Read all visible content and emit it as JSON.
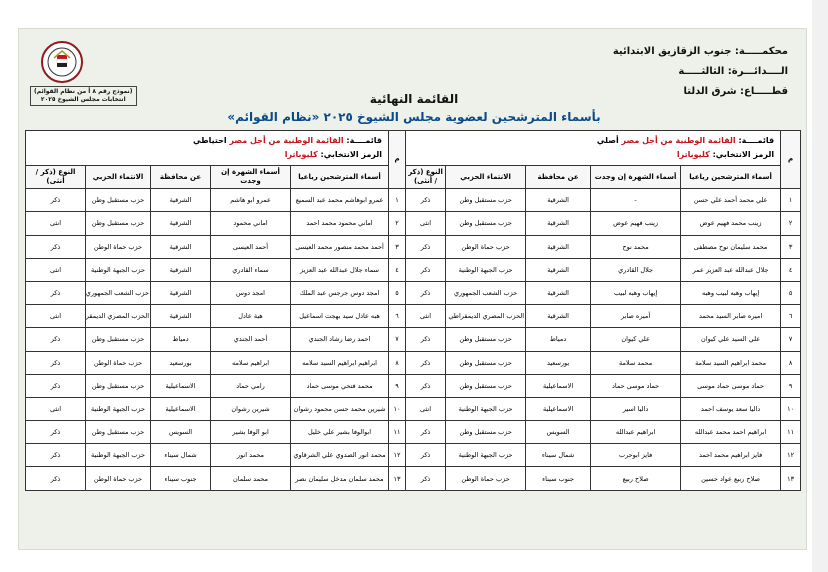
{
  "header": {
    "court": "محكمـــــة: جنوب الزقازيق الابتدائية",
    "circuit": "الــــدائـــرة: الثالثـــــة",
    "sector": "قطـــــاع: شرق الدلتا",
    "title": "القائمة النهائية",
    "subtitle": "بأسماء المترشحين لعضوية مجلس الشيوخ ٢٠٢٥ «نظام القوائم»",
    "form_note": [
      "(نموذج رقم ٨ أ من نظام القوائم)",
      "انتخابات مجلس الشيوخ ٢٠٢٥"
    ]
  },
  "tables": [
    {
      "list_label": "قائمــــة:",
      "list_name": "القائمة الوطنية من أجل مصر",
      "list_type": "أصلي",
      "symbol_label": "الرمز الانتخابي:",
      "symbol": "كليوباترا",
      "columns": [
        "م",
        "أسماء المترشحين رباعيا",
        "أسماء الشهرة إن وجدت",
        "عن محافظة",
        "الانتماء الحزبي",
        "النوع (ذكر / أنثى)"
      ],
      "rows": [
        [
          "١",
          "علي محمد أحمد علي حسن",
          "-",
          "الشرقية",
          "حزب مستقبل وطن",
          "ذكر"
        ],
        [
          "٢",
          "زينب محمد فهيم عوض",
          "زينب فهيم عوض",
          "الشرقية",
          "حزب مستقبل وطن",
          "انثى"
        ],
        [
          "٣",
          "محمد سليمان نوح مصطفى",
          "محمد نوح",
          "الشرقية",
          "حزب حماة الوطن",
          "ذكر"
        ],
        [
          "٤",
          "جلال عبدالله عبد العزيز عمر",
          "جلال القادري",
          "الشرقية",
          "حزب الجبهة الوطنية",
          "ذكر"
        ],
        [
          "٥",
          "إيهاب وهبه لبيب وهبه",
          "إيهاب وهبه لبيب",
          "الشرقية",
          "حزب الشعب الجمهوري",
          "ذكر"
        ],
        [
          "٦",
          "اميره صابر السيد محمد",
          "أميره صابر",
          "الشرقية",
          "الحزب المصري الديمقراطي الاجتماعي",
          "انثى"
        ],
        [
          "٧",
          "علي السيد علي كيوان",
          "علي كيوان",
          "دمياط",
          "حزب مستقبل وطن",
          "ذكر"
        ],
        [
          "٨",
          "محمد ابراهيم السيد سلامة",
          "محمد سلامة",
          "بورسعيد",
          "حزب مستقبل وطن",
          "ذكر"
        ],
        [
          "٩",
          "حماد موسى حماد موسى",
          "حماد موسى حماد",
          "الاسماعيلية",
          "حزب مستقبل وطن",
          "ذكر"
        ],
        [
          "١٠",
          "داليا سعد يوسف احمد",
          "داليا اسير",
          "الاسماعيلية",
          "حزب الجبهة الوطنية",
          "انثى"
        ],
        [
          "١١",
          "ابراهيم احمد محمد عبدالله",
          "ابراهيم عبدالله",
          "السويس",
          "حزب مستقبل وطن",
          "ذكر"
        ],
        [
          "١٢",
          "فايز ابراهيم محمد احمد",
          "فايز ابوحرب",
          "شمال سيناء",
          "حزب الجبهة الوطنية",
          "ذكر"
        ],
        [
          "١٣",
          "صلاح ربيع عواد حسين",
          "صلاح ربيع",
          "جنوب سيناء",
          "حزب حماة الوطن",
          "ذكر"
        ]
      ]
    },
    {
      "list_label": "قائمــــة:",
      "list_name": "القائمة الوطنية من أجل مصر",
      "list_type": "احتياطي",
      "symbol_label": "الرمز الانتخابي:",
      "symbol": "كليوباترا",
      "columns": [
        "م",
        "أسماء المترشحين رباعيا",
        "أسماء الشهرة إن وجدت",
        "عن محافظة",
        "الانتماء الحزبي",
        "النوع (ذكر / أنثى)"
      ],
      "rows": [
        [
          "١",
          "عمرو ابوهاشم محمد عبد السميع",
          "عمرو ابو هاشم",
          "الشرقية",
          "حزب مستقبل وطن",
          "ذكر"
        ],
        [
          "٢",
          "اماني محمود محمد احمد",
          "اماني محمود",
          "الشرقية",
          "حزب مستقبل وطن",
          "انثى"
        ],
        [
          "٣",
          "أحمد محمد منصور محمد العيسى",
          "أحمد العيسى",
          "الشرقية",
          "حزب حماة الوطن",
          "ذكر"
        ],
        [
          "٤",
          "سماء جلال عبدالله عبد العزيز",
          "سماء القادري",
          "الشرقية",
          "حزب الجبهة الوطنية",
          "انثى"
        ],
        [
          "٥",
          "امجد دوس جرجس عبد الملك",
          "امجد دوس",
          "الشرقية",
          "حزب الشعب الجمهوري",
          "ذكر"
        ],
        [
          "٦",
          "هبه عادل سيد بهجت اسماعيل",
          "هبة عادل",
          "الشرقية",
          "الحزب المصري الديمقراطي الاجتماعي",
          "انثى"
        ],
        [
          "٧",
          "احمد رضا رشاد الجندي",
          "أحمد الجندي",
          "دمياط",
          "حزب مستقبل وطن",
          "ذكر"
        ],
        [
          "٨",
          "ابراهيم ابراهيم السيد سلامه",
          "ابراهيم سلامه",
          "بورسعيد",
          "حزب حماة الوطن",
          "ذكر"
        ],
        [
          "٩",
          "محمد فتحي موسى حماد",
          "رامي حماد",
          "الاسماعيلية",
          "حزب مستقبل وطن",
          "ذكر"
        ],
        [
          "١٠",
          "شيرين محمد حسن محمود رشوان",
          "شيرين رشوان",
          "الاسماعيلية",
          "حزب الجبهة الوطنية",
          "انثى"
        ],
        [
          "١١",
          "ابوالوفا بشير علي خليل",
          "ابو الوفا بشير",
          "السويس",
          "حزب مستقبل وطن",
          "ذكر"
        ],
        [
          "١٢",
          "محمد انور الصدوي علي الشرقاوي",
          "محمد انور",
          "شمال سيناء",
          "حزب الجبهة الوطنية",
          "ذكر"
        ],
        [
          "١٣",
          "محمد سلمان مدخل سليمان نصر",
          "محمد سلمان",
          "جنوب سيناء",
          "حزب حماة الوطن",
          "ذكر"
        ]
      ]
    }
  ]
}
